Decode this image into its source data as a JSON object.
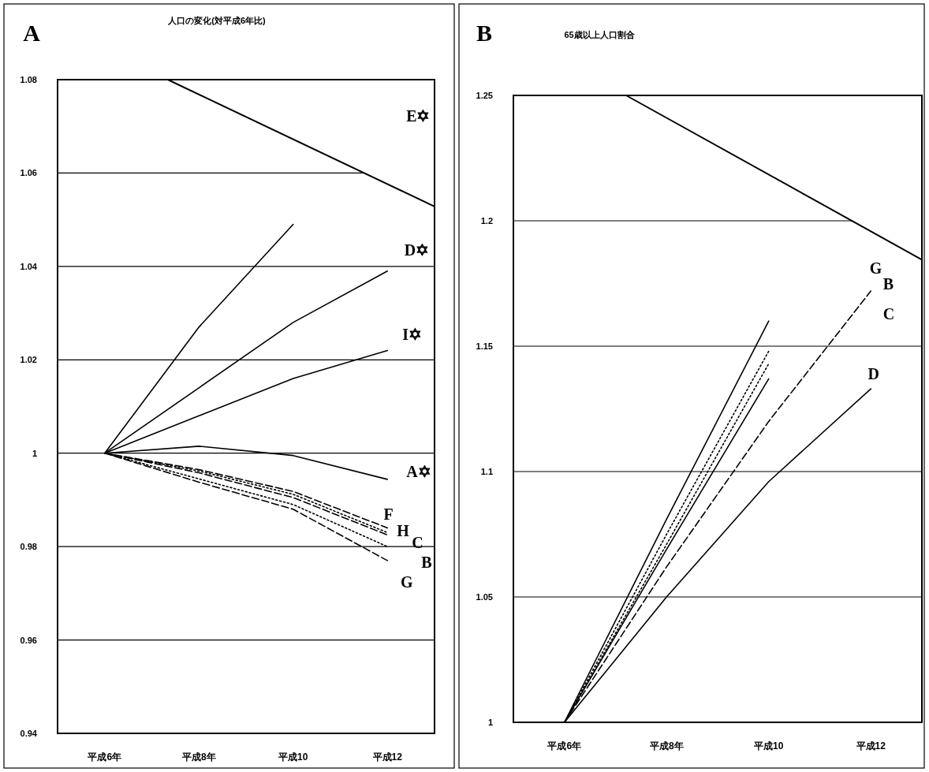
{
  "chart_data": [
    {
      "type": "line",
      "title": "人口の変化(対平成6年比)",
      "annotations": [
        "A",
        "E✡",
        "D✡",
        "I✡",
        "A✡",
        "F",
        "H",
        "C",
        "B",
        "G"
      ],
      "categories": [
        "平成6年",
        "平成8年",
        "平成10",
        "平成12"
      ],
      "ylim": [
        0.94,
        1.08
      ],
      "yticks": [
        0.94,
        0.96,
        0.98,
        1,
        1.02,
        1.04,
        1.06,
        1.08
      ],
      "grid": "y",
      "series": [
        {
          "color": "#000000",
          "line_style": "solid",
          "values": [
            1,
            1.027,
            1.049,
            null
          ]
        },
        {
          "color": "#000000",
          "line_style": "solid",
          "values": [
            1,
            1.014,
            1.028,
            1.039
          ]
        },
        {
          "color": "#000000",
          "line_style": "solid",
          "values": [
            1,
            1.008,
            1.016,
            1.022
          ]
        },
        {
          "color": "#000000",
          "line_style": "solid",
          "values": [
            1,
            1.0015,
            0.9995,
            0.9944
          ]
        },
        {
          "color": "#000000",
          "line_style": "dashed",
          "values": [
            1,
            0.9965,
            0.9918,
            0.984
          ]
        },
        {
          "color": "#000000",
          "line_style": "dotted",
          "values": [
            1,
            0.9962,
            0.9912,
            0.983
          ]
        },
        {
          "color": "#000000",
          "line_style": "dashed",
          "values": [
            1,
            0.9958,
            0.9905,
            0.9825
          ]
        },
        {
          "color": "#000000",
          "line_style": "dotted",
          "values": [
            1,
            0.9945,
            0.989,
            0.98
          ]
        },
        {
          "color": "#000000",
          "line_style": "dashed",
          "values": [
            1,
            0.9938,
            0.988,
            0.977
          ]
        }
      ]
    },
    {
      "type": "line",
      "title": "65歳以上人口割合",
      "annotations": [
        "B",
        "G",
        "B",
        "C",
        "D"
      ],
      "categories": [
        "平成6年",
        "平成8年",
        "平成10",
        "平成12"
      ],
      "ylim": [
        1,
        1.25
      ],
      "yticks": [
        1,
        1.05,
        1.1,
        1.15,
        1.2,
        1.25
      ],
      "grid": "y",
      "series": [
        {
          "color": "#000000",
          "line_style": "solid",
          "values": [
            1,
            1.081,
            1.16,
            null
          ]
        },
        {
          "color": "#000000",
          "line_style": "dotted",
          "values": [
            1,
            1.075,
            1.148,
            null
          ]
        },
        {
          "color": "#000000",
          "line_style": "dotted",
          "values": [
            1,
            1.071,
            1.143,
            null
          ]
        },
        {
          "color": "#000000",
          "line_style": "solid",
          "values": [
            1,
            1.069,
            1.137,
            null
          ]
        },
        {
          "color": "#000000",
          "line_style": "dashed",
          "values": [
            1,
            1.062,
            1.12,
            1.172
          ]
        },
        {
          "color": "#000000",
          "line_style": "solid",
          "values": [
            1,
            1.05,
            1.096,
            1.133
          ]
        }
      ]
    }
  ]
}
